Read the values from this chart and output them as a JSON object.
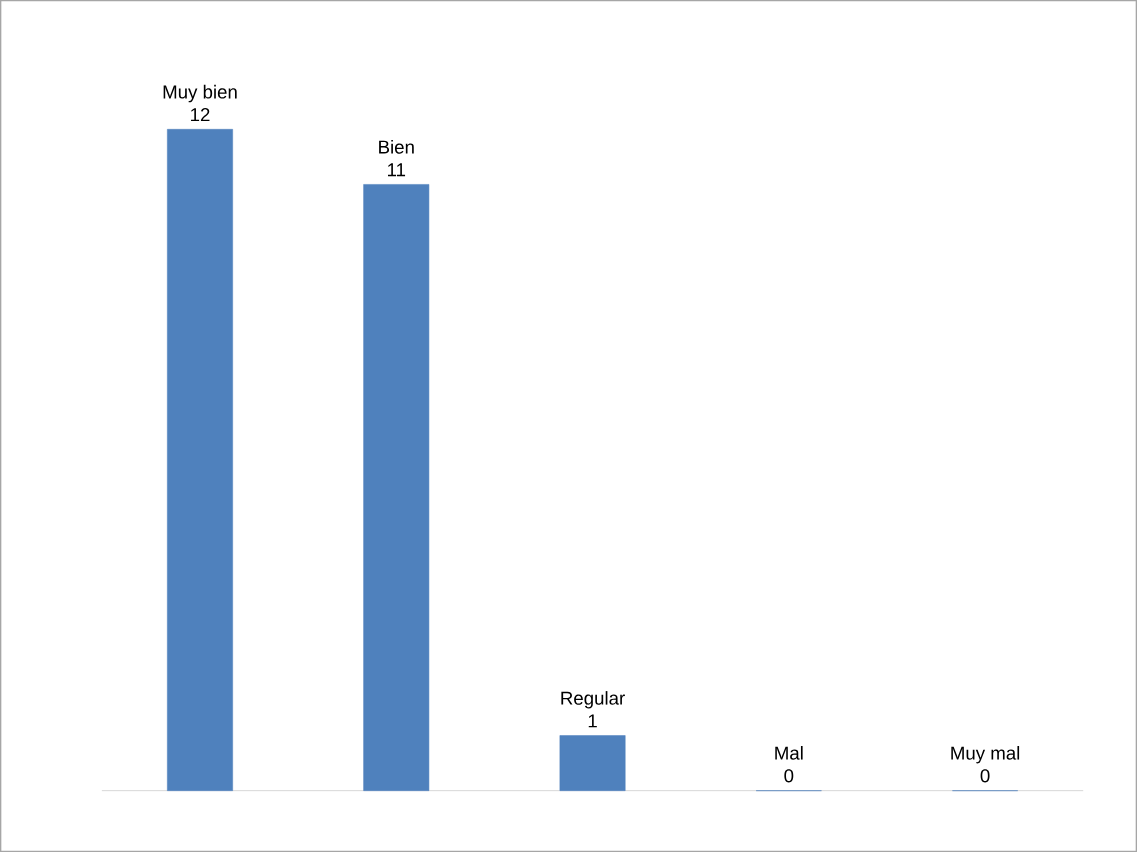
{
  "chart_data": {
    "type": "bar",
    "categories": [
      "Muy bien",
      "Bien",
      "Regular",
      "Mal",
      "Muy mal"
    ],
    "values": [
      12,
      11,
      1,
      0,
      0
    ],
    "color": "#4f81bd",
    "data_labels": true
  }
}
